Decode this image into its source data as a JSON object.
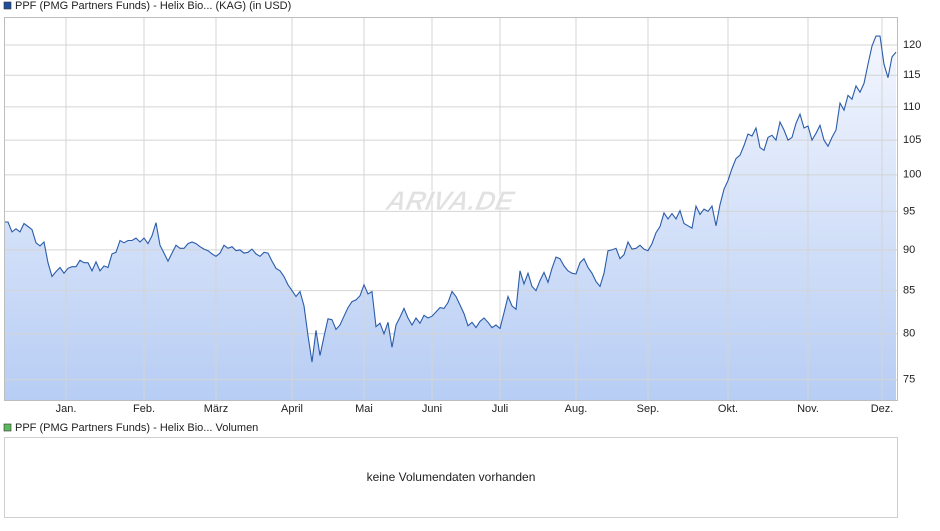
{
  "chart_data": [
    {
      "type": "line",
      "title": "PPF (PMG Partners Funds) - Helix Bio... (KAG) (in USD)",
      "watermark": "ARIVA.DE",
      "log_scale": true,
      "grid": true,
      "color": "#2a5caa",
      "legend_color": "#1f4e9c",
      "ylim": [
        72.8,
        124.8
      ],
      "yticks": [
        75,
        80,
        85,
        90,
        95,
        100,
        105,
        110,
        115,
        120
      ],
      "xlim": [
        0,
        223
      ],
      "xticks": [
        {
          "value": 15.5,
          "label": "Jan."
        },
        {
          "value": 35,
          "label": "Feb."
        },
        {
          "value": 53,
          "label": "März"
        },
        {
          "value": 72,
          "label": "April"
        },
        {
          "value": 90,
          "label": "Mai"
        },
        {
          "value": 107,
          "label": "Juni"
        },
        {
          "value": 124,
          "label": "Juli"
        },
        {
          "value": 143,
          "label": "Aug."
        },
        {
          "value": 161,
          "label": "Sep."
        },
        {
          "value": 181,
          "label": "Okt."
        },
        {
          "value": 201,
          "label": "Nov."
        },
        {
          "value": 219.5,
          "label": "Dez."
        }
      ],
      "values": [
        93.6,
        93.6,
        92.3,
        92.7,
        92.3,
        93.4,
        93.0,
        92.6,
        90.9,
        90.5,
        91.0,
        88.4,
        86.7,
        87.3,
        87.8,
        87.1,
        87.7,
        87.9,
        87.9,
        88.7,
        88.4,
        88.4,
        87.4,
        88.5,
        87.4,
        88.0,
        87.8,
        89.5,
        89.7,
        91.2,
        90.9,
        91.2,
        91.2,
        91.5,
        91.0,
        91.5,
        90.8,
        91.8,
        93.5,
        90.6,
        89.6,
        88.6,
        89.6,
        90.6,
        90.2,
        90.2,
        90.8,
        91.0,
        90.8,
        90.4,
        90.1,
        89.9,
        89.5,
        89.2,
        89.6,
        90.6,
        90.2,
        90.4,
        89.9,
        90.0,
        89.6,
        89.7,
        90.1,
        89.5,
        89.2,
        89.7,
        89.6,
        88.6,
        87.7,
        87.4,
        86.7,
        85.7,
        85.0,
        84.3,
        84.9,
        83.2,
        79.8,
        76.9,
        80.4,
        77.6,
        79.7,
        81.7,
        81.6,
        80.5,
        81.0,
        82.0,
        83.0,
        83.7,
        83.9,
        84.4,
        85.7,
        84.6,
        84.9,
        80.8,
        81.2,
        80.0,
        81.3,
        78.5,
        81.0,
        81.9,
        82.9,
        81.8,
        81.0,
        81.8,
        81.2,
        82.1,
        81.8,
        82.0,
        82.5,
        83.0,
        82.9,
        83.6,
        84.9,
        84.3,
        83.3,
        82.3,
        80.9,
        81.3,
        80.7,
        81.4,
        81.8,
        81.3,
        80.7,
        81.0,
        80.6,
        82.4,
        84.3,
        83.2,
        82.8,
        87.4,
        85.8,
        87.1,
        85.5,
        85.0,
        86.2,
        87.2,
        86.0,
        87.7,
        89.1,
        88.9,
        88.0,
        87.4,
        87.1,
        87.0,
        88.4,
        88.9,
        87.8,
        87.1,
        86.1,
        85.5,
        87.1,
        89.9,
        90.0,
        90.2,
        88.9,
        89.4,
        91.0,
        90.1,
        90.2,
        90.6,
        90.1,
        89.9,
        90.8,
        92.2,
        93.0,
        94.8,
        94.0,
        94.7,
        94.0,
        95.1,
        93.4,
        93.1,
        92.8,
        95.7,
        94.6,
        95.3,
        95.0,
        95.7,
        93.1,
        95.9,
        98.0,
        99.2,
        100.9,
        102.3,
        102.8,
        104.2,
        105.9,
        105.6,
        106.8,
        103.9,
        103.5,
        105.4,
        105.7,
        105.0,
        107.7,
        106.5,
        105.0,
        105.4,
        107.5,
        108.9,
        106.8,
        107.1,
        105.0,
        106.0,
        107.2,
        105.0,
        104.1,
        105.4,
        106.5,
        110.6,
        109.5,
        111.8,
        111.2,
        113.3,
        112.3,
        113.7,
        116.8,
        119.8,
        121.5,
        121.5,
        116.8,
        114.6,
        118.0,
        118.8
      ]
    },
    {
      "type": "volume",
      "title": "PPF (PMG Partners Funds) - Helix Bio... Volumen",
      "legend_color": "#5cb85c",
      "message": "keine Volumendaten vorhanden"
    }
  ]
}
